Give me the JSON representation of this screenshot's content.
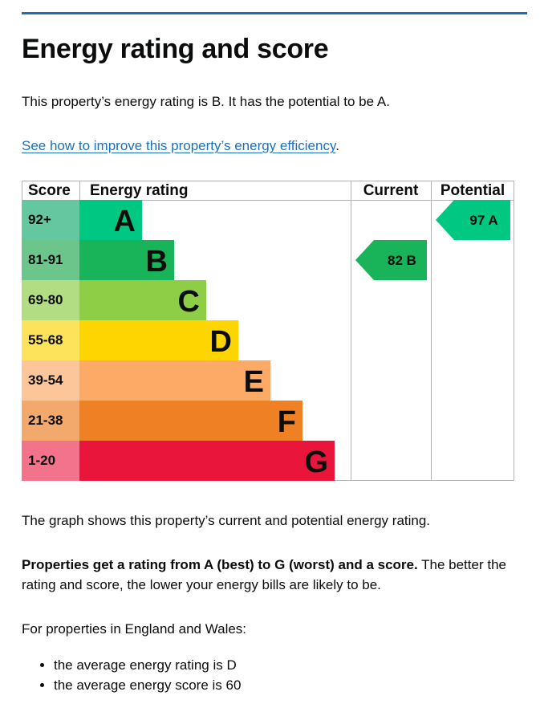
{
  "page": {
    "title": "Energy rating and score",
    "summary": "This property’s energy rating is B. It has the potential to be A.",
    "improve_link": "See how to improve this property’s energy efficiency",
    "improve_link_suffix": ".",
    "graph_caption": "The graph shows this property’s current and potential energy rating.",
    "bands_bold": "Properties get a rating from A (best) to G (worst) and a score.",
    "bands_rest": " The better the rating and score, the lower your energy bills are likely to be.",
    "england_wales": "For properties in England and Wales:",
    "averages": [
      "the average energy rating is D",
      "the average energy score is 60"
    ]
  },
  "chart_data": {
    "type": "bar",
    "headers": {
      "score": "Score",
      "rating": "Energy rating",
      "current": "Current",
      "potential": "Potential"
    },
    "bands": [
      {
        "letter": "A",
        "range": "92+",
        "color": "#00c781",
        "score_bg": "#64c7a0"
      },
      {
        "letter": "B",
        "range": "81-91",
        "color": "#19b459",
        "score_bg": "#6cc68c"
      },
      {
        "letter": "C",
        "range": "69-80",
        "color": "#8dce46",
        "score_bg": "#b3dd82"
      },
      {
        "letter": "D",
        "range": "55-68",
        "color": "#ffd500",
        "score_bg": "#fde35c"
      },
      {
        "letter": "E",
        "range": "39-54",
        "color": "#fcaa65",
        "score_bg": "#fcc69a"
      },
      {
        "letter": "F",
        "range": "21-38",
        "color": "#ef8023",
        "score_bg": "#f3a96b"
      },
      {
        "letter": "G",
        "range": "1-20",
        "color": "#e9153b",
        "score_bg": "#f2738b"
      }
    ],
    "current": {
      "score": 82,
      "letter": "B",
      "label": "82 B",
      "color": "#19b459"
    },
    "potential": {
      "score": 97,
      "letter": "A",
      "label": "97 A",
      "color": "#00c781"
    }
  }
}
